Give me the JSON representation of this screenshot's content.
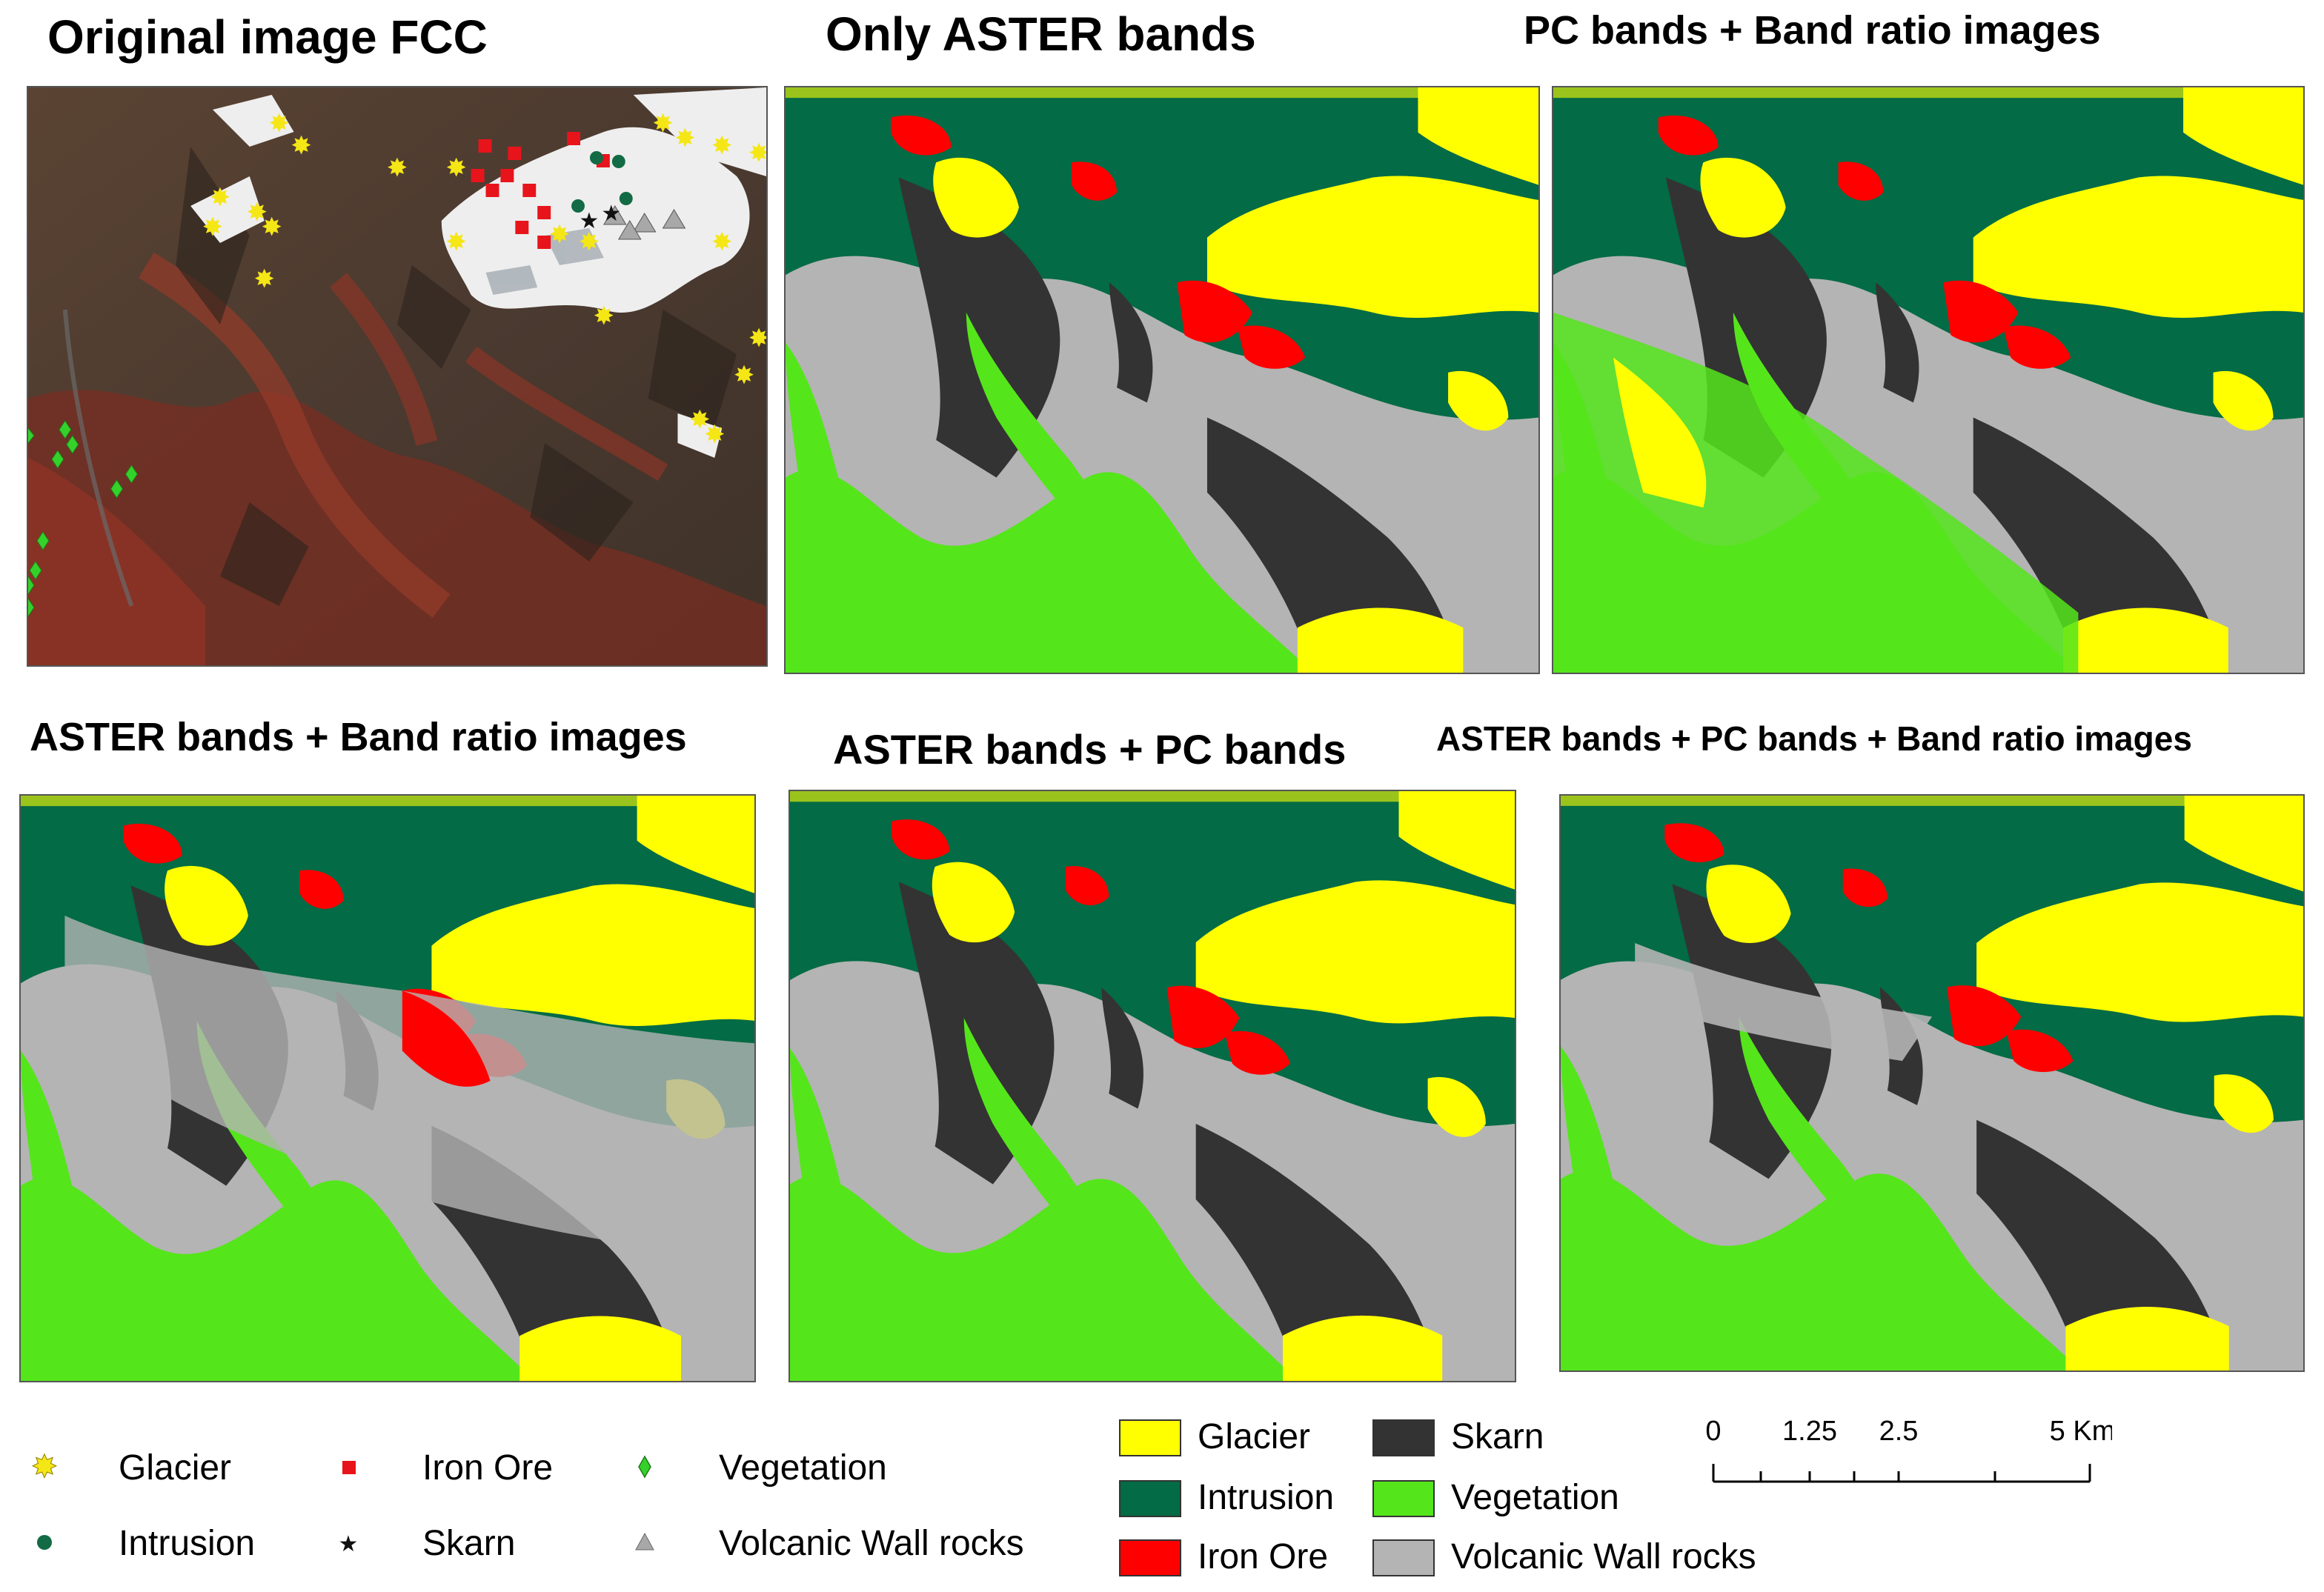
{
  "panels": [
    {
      "id": "fcc",
      "title": "Original image FCC"
    },
    {
      "id": "aster",
      "title": "Only ASTER bands"
    },
    {
      "id": "pc_ratio",
      "title": "PC bands + Band ratio images"
    },
    {
      "id": "aster_ratio",
      "title": "ASTER bands + Band ratio images"
    },
    {
      "id": "aster_pc",
      "title": "ASTER bands + PC bands"
    },
    {
      "id": "aster_pc_ratio",
      "title": "ASTER bands + PC bands + Band ratio images"
    }
  ],
  "point_legend": [
    {
      "label": "Glacier",
      "symbol": "sunburst",
      "color": "#f5e616"
    },
    {
      "label": "Iron Ore",
      "symbol": "square",
      "color": "#e8141b"
    },
    {
      "label": "Vegetation",
      "symbol": "diamond",
      "color": "#34d12b"
    },
    {
      "label": "Intrusion",
      "symbol": "circle",
      "color": "#126b44"
    },
    {
      "label": "Skarn",
      "symbol": "star",
      "color": "#111111"
    },
    {
      "label": "Volcanic Wall rocks",
      "symbol": "triangle",
      "color": "#a8a8a8"
    }
  ],
  "class_legend": [
    {
      "label": "Glacier",
      "color": "#ffff00"
    },
    {
      "label": "Skarn",
      "color": "#333333"
    },
    {
      "label": "Intrusion",
      "color": "#036b45"
    },
    {
      "label": "Vegetation",
      "color": "#55e51b"
    },
    {
      "label": "Iron Ore",
      "color": "#ff0000"
    },
    {
      "label": "Volcanic Wall rocks",
      "color": "#b4b4b4"
    }
  ],
  "scale_bar": {
    "ticks": [
      "0",
      "1.25",
      "2.5",
      "5"
    ],
    "unit": "Km"
  }
}
